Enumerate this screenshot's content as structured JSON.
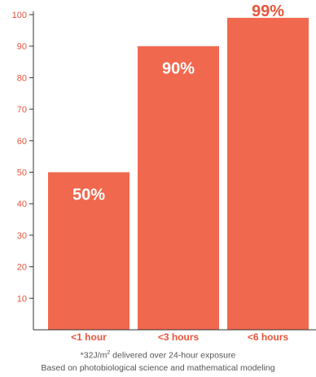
{
  "chart_data": {
    "type": "bar",
    "categories": [
      "<1 hour",
      "<3 hours",
      "<6 hours"
    ],
    "values": [
      50,
      90,
      99
    ],
    "value_labels": [
      "50%",
      "90%",
      "99%"
    ],
    "ylim": [
      0,
      100
    ],
    "yticks": [
      10,
      20,
      30,
      40,
      50,
      60,
      70,
      80,
      90,
      100
    ],
    "grid": false,
    "colors": {
      "bar": "#f0684e",
      "text": "#e8553b",
      "axis": "#333333"
    }
  },
  "footnotes": {
    "line1_prefix": "*32J/m",
    "line1_sup": "2",
    "line1_suffix": " delivered over 24-hour exposure",
    "line2": "Based on photobiological science and mathematical modeling"
  }
}
